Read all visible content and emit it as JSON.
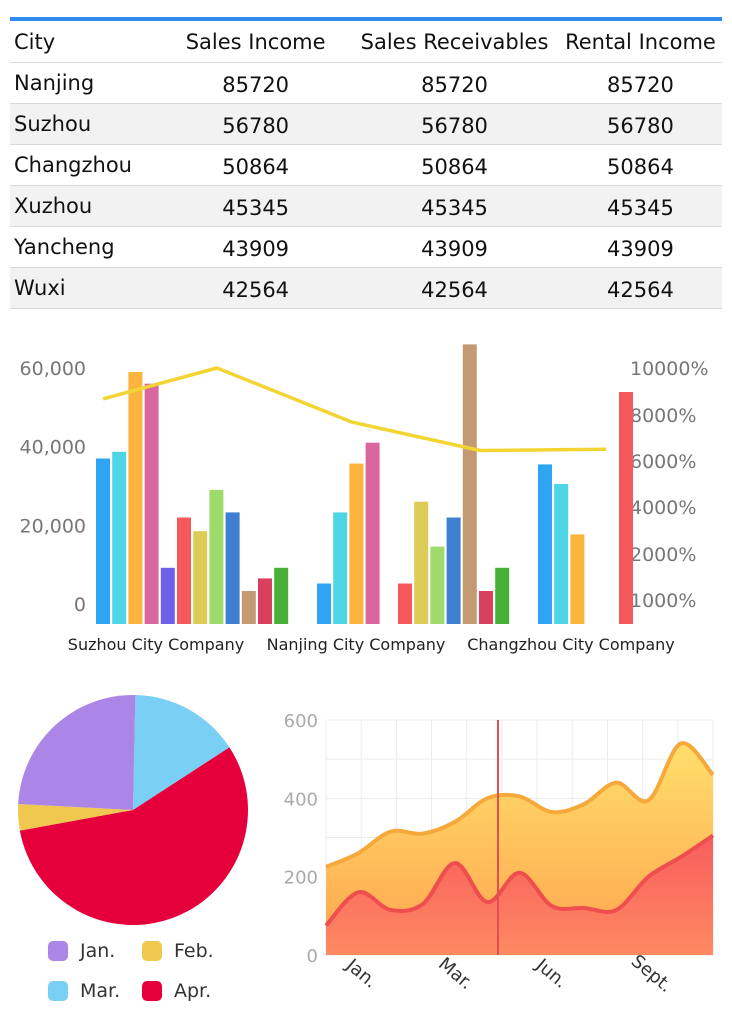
{
  "table": {
    "headers": [
      "City",
      "Sales Income",
      "Sales Receivables",
      "Rental Income"
    ],
    "rows": [
      [
        "Nanjing",
        "85720",
        "85720",
        "85720"
      ],
      [
        "Suzhou",
        "56780",
        "56780",
        "56780"
      ],
      [
        "Changzhou",
        "50864",
        "50864",
        "50864"
      ],
      [
        "Xuzhou",
        "45345",
        "45345",
        "45345"
      ],
      [
        "Yancheng",
        "43909",
        "43909",
        "43909"
      ],
      [
        "Wuxi",
        "42564",
        "42564",
        "42564"
      ]
    ]
  },
  "chart_data": [
    {
      "type": "bar",
      "categories": [
        "Suzhou City Company",
        "Nanjing City Company",
        "Changzhou City Company"
      ],
      "left_axis": {
        "ticks": [
          "0",
          "20,000",
          "40,000",
          "60,000"
        ],
        "tick_values": [
          0,
          20000,
          40000,
          60000
        ],
        "ylim": [
          0,
          70000
        ]
      },
      "right_axis": {
        "ticks": [
          "1000%",
          "2000%",
          "4000%",
          "6000%",
          "8000%",
          "10000%"
        ],
        "tick_values": [
          1000,
          2000,
          4000,
          6000,
          8000,
          10000
        ]
      },
      "bars": [
        {
          "category": 0,
          "value": 37000,
          "color": "#2fa4f2"
        },
        {
          "category": 0,
          "value": 38700,
          "color": "#4fd6e6"
        },
        {
          "category": 0,
          "value": 59000,
          "color": "#fbb43c"
        },
        {
          "category": 0,
          "value": 56000,
          "color": "#d9669c"
        },
        {
          "category": 0,
          "value": 9200,
          "color": "#6d5fe6"
        },
        {
          "category": 0,
          "value": 22000,
          "color": "#f4585a"
        },
        {
          "category": 0,
          "value": 18500,
          "color": "#dccb57"
        },
        {
          "category": 0,
          "value": 29000,
          "color": "#9edb6a"
        },
        {
          "category": 0,
          "value": 23300,
          "color": "#3f7fcf"
        },
        {
          "category": 0,
          "value": 3300,
          "color": "#c49a72"
        },
        {
          "category": 0,
          "value": 6500,
          "color": "#d9405e"
        },
        {
          "category": 0,
          "value": 9200,
          "color": "#48b038"
        },
        {
          "category": 1,
          "value": 5200,
          "color": "#2fa4f2"
        },
        {
          "category": 1,
          "value": 23300,
          "color": "#4fd6e6"
        },
        {
          "category": 1,
          "value": 35700,
          "color": "#fbb43c"
        },
        {
          "category": 1,
          "value": 41000,
          "color": "#d9669c"
        },
        {
          "category": 1,
          "value": 5200,
          "color": "#f4585a"
        },
        {
          "category": 1,
          "value": 26000,
          "color": "#dccb57"
        },
        {
          "category": 1,
          "value": 14600,
          "color": "#9edb6a"
        },
        {
          "category": 1,
          "value": 22000,
          "color": "#3f7fcf"
        },
        {
          "category": 1,
          "value": 66000,
          "color": "#c49a72"
        },
        {
          "category": 1,
          "value": 3300,
          "color": "#d9405e"
        },
        {
          "category": 1,
          "value": 9200,
          "color": "#48b038"
        },
        {
          "category": 2,
          "value": 35500,
          "color": "#2fa4f2"
        },
        {
          "category": 2,
          "value": 30500,
          "color": "#4fd6e6"
        },
        {
          "category": 2,
          "value": 17700,
          "color": "#fbb43c"
        },
        {
          "category": 2,
          "value": 89000,
          "axis": "right",
          "color": "#f4585a"
        }
      ],
      "line": {
        "color": "#f2d533",
        "points_right_axis": [
          8800,
          10000,
          7900,
          6800,
          6850
        ]
      }
    },
    {
      "type": "pie",
      "slices": [
        {
          "label": "Jan.",
          "value": 24.5,
          "color": "#ac86e6"
        },
        {
          "label": "Feb.",
          "value": 3.7,
          "color": "#f0c850"
        },
        {
          "label": "Mar.",
          "value": 15.5,
          "color": "#7acff5"
        },
        {
          "label": "Apr.",
          "value": 56.3,
          "color": "#e5003b"
        }
      ]
    },
    {
      "type": "area",
      "x_labels": [
        "Jan.",
        "Mar.",
        "Jun.",
        "Sept."
      ],
      "y_ticks": [
        "0",
        "200",
        "400",
        "600"
      ],
      "ylim": [
        0,
        600
      ],
      "series": [
        {
          "values": [
            225,
            260,
            315,
            310,
            340,
            400,
            405,
            365,
            385,
            440,
            395,
            540,
            460
          ],
          "color": "#f6a83a"
        },
        {
          "values": [
            75,
            160,
            115,
            130,
            235,
            135,
            210,
            125,
            120,
            115,
            200,
            250,
            305
          ],
          "color": "#ef4e4e"
        }
      ],
      "marker_color": "#e05050"
    }
  ]
}
